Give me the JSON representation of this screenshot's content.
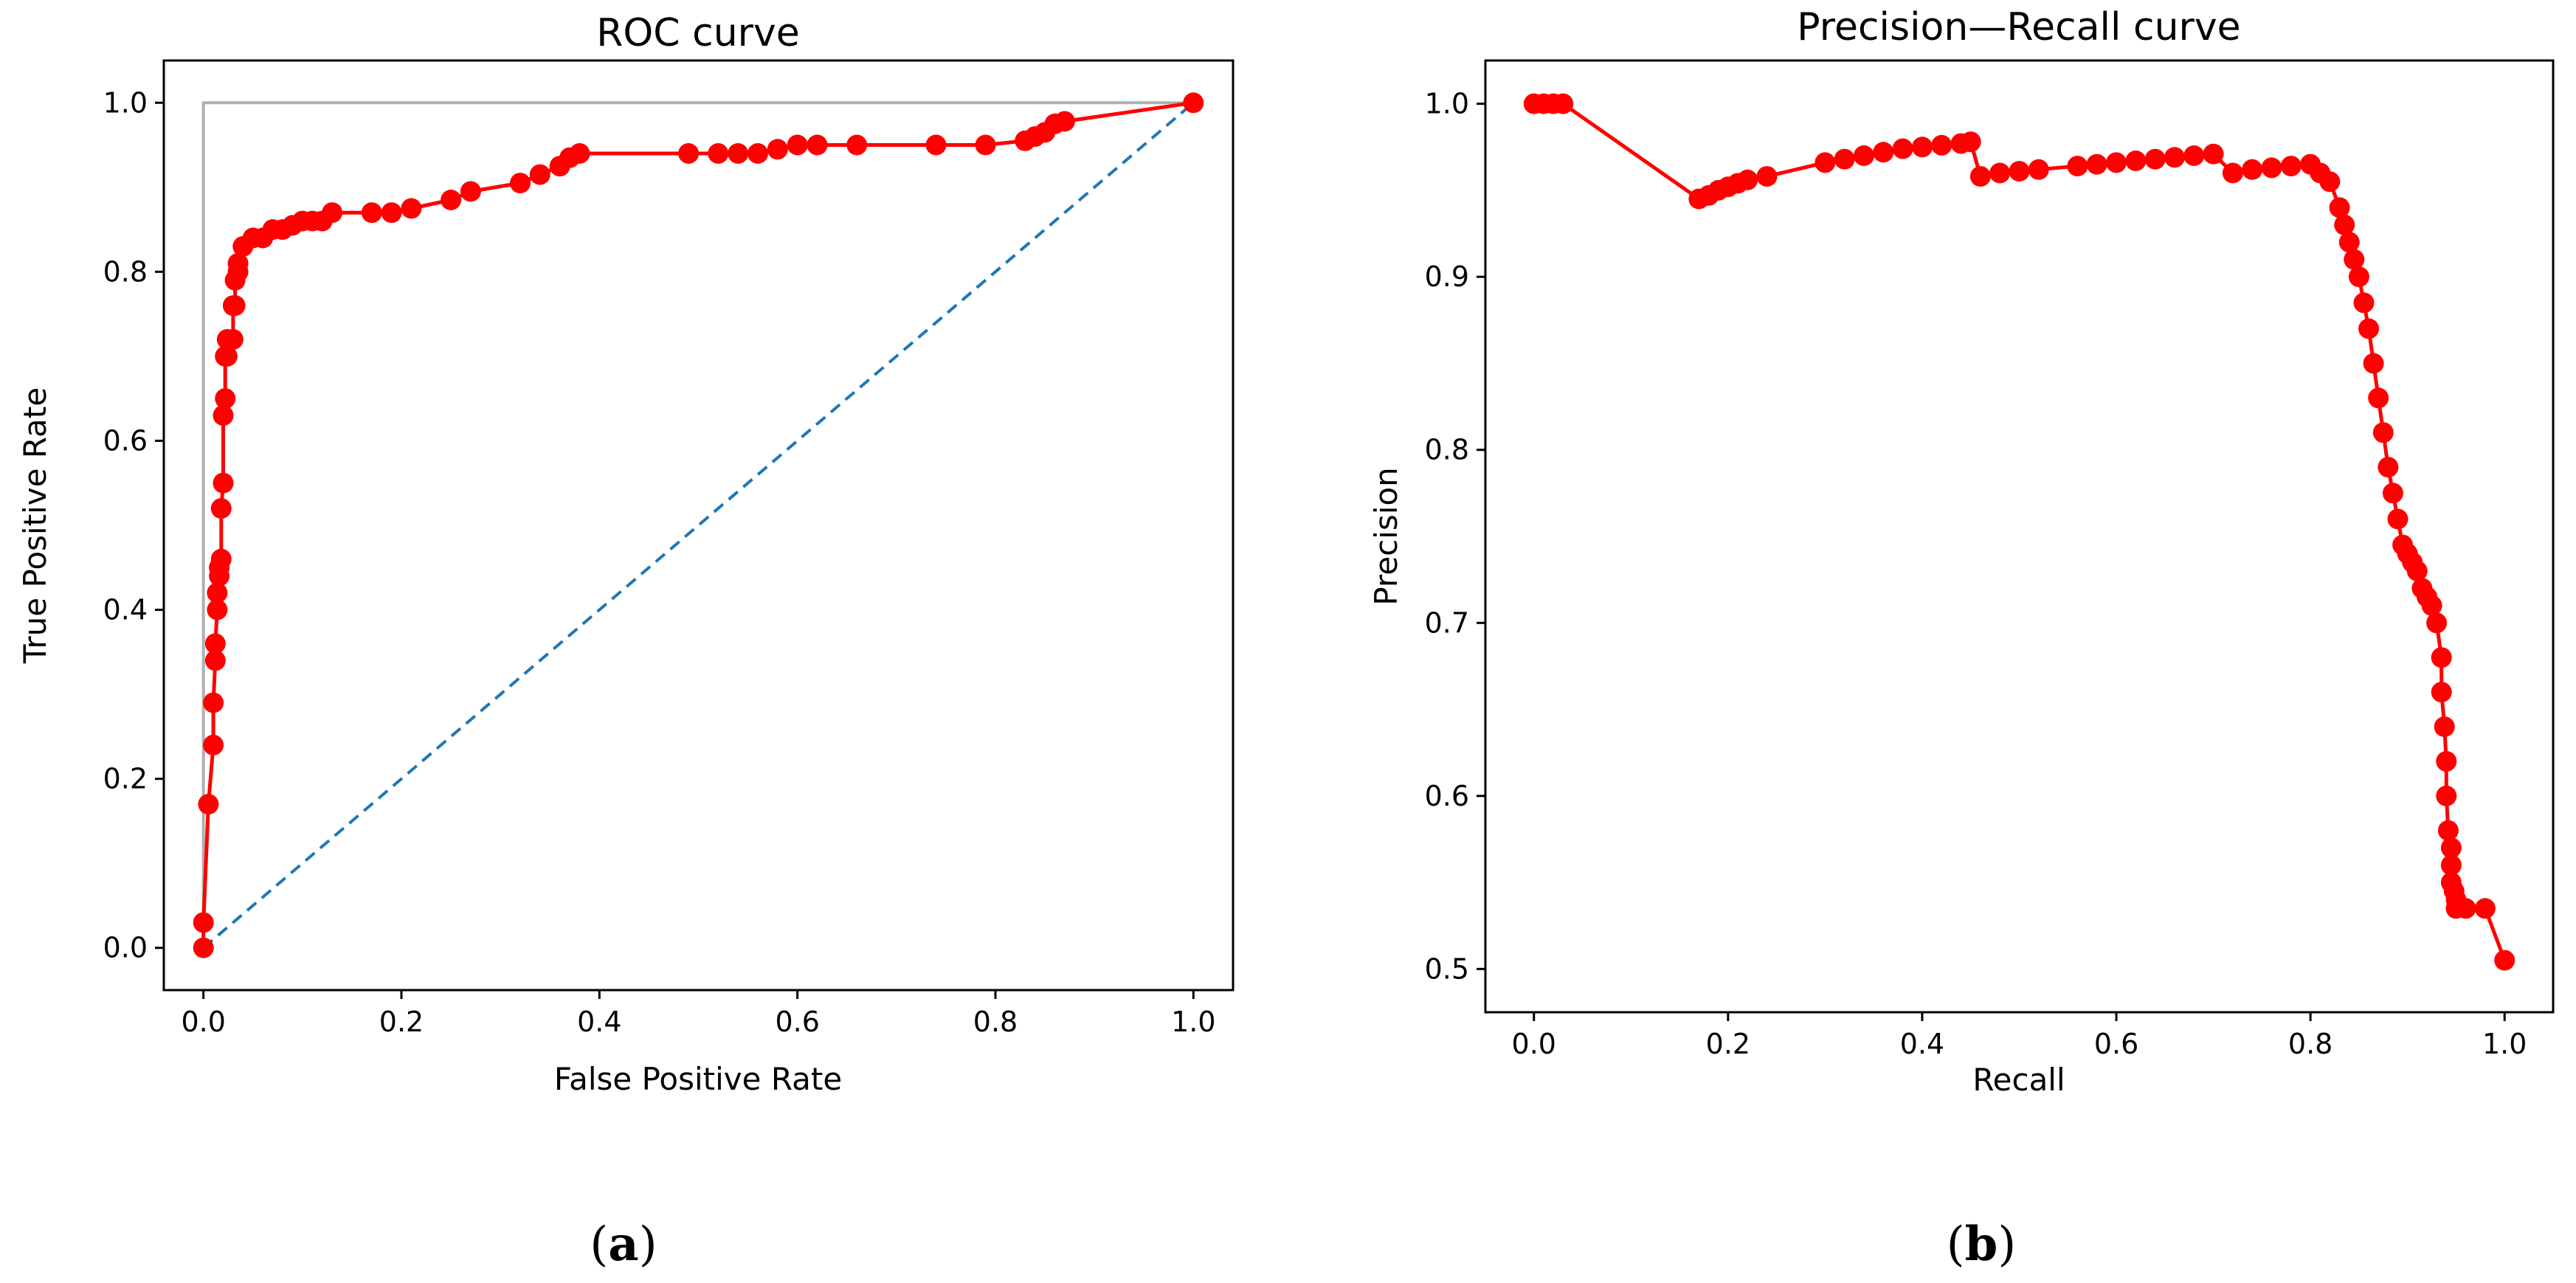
{
  "colors": {
    "curve": "#ff0000",
    "perfect": "#b0b0b0",
    "chance": "#1f77b4",
    "axis": "#000000"
  },
  "panels": {
    "a": {
      "open": "(",
      "letter": "a",
      "close": ")"
    },
    "b": {
      "open": "(",
      "letter": "b",
      "close": ")"
    }
  },
  "chart_data": [
    {
      "id": "roc",
      "type": "line",
      "title": "ROC curve",
      "xlabel": "False Positive Rate",
      "ylabel": "True Positive Rate",
      "xlim": [
        -0.04,
        1.04
      ],
      "ylim": [
        -0.05,
        1.05
      ],
      "xticks": [
        0.0,
        0.2,
        0.4,
        0.6,
        0.8,
        1.0
      ],
      "yticks": [
        0.0,
        0.2,
        0.4,
        0.6,
        0.8,
        1.0
      ],
      "tick_labels_x": [
        "0.0",
        "0.2",
        "0.4",
        "0.6",
        "0.8",
        "1.0"
      ],
      "tick_labels_y": [
        "0.0",
        "0.2",
        "0.4",
        "0.6",
        "0.8",
        "1.0"
      ],
      "series": [
        {
          "name": "perfect classifier",
          "style": "solid",
          "color": "#b0b0b0",
          "markers": false,
          "x": [
            0,
            0,
            1
          ],
          "y": [
            0,
            1,
            1
          ]
        },
        {
          "name": "chance",
          "style": "dashed",
          "color": "#1f77b4",
          "markers": false,
          "x": [
            0,
            1
          ],
          "y": [
            0,
            1
          ]
        },
        {
          "name": "ROC",
          "style": "solid",
          "color": "#ff0000",
          "markers": true,
          "x": [
            0,
            0,
            0.005,
            0.01,
            0.01,
            0.012,
            0.012,
            0.014,
            0.014,
            0.016,
            0.016,
            0.018,
            0.018,
            0.02,
            0.02,
            0.022,
            0.022,
            0.024,
            0.024,
            0.03,
            0.03,
            0.032,
            0.032,
            0.035,
            0.035,
            0.04,
            0.05,
            0.06,
            0.07,
            0.08,
            0.09,
            0.1,
            0.11,
            0.12,
            0.13,
            0.17,
            0.19,
            0.21,
            0.25,
            0.27,
            0.32,
            0.34,
            0.36,
            0.37,
            0.38,
            0.49,
            0.52,
            0.54,
            0.56,
            0.58,
            0.6,
            0.62,
            0.66,
            0.74,
            0.79,
            0.83,
            0.84,
            0.85,
            0.86,
            0.87,
            1.0
          ],
          "y": [
            0,
            0.03,
            0.17,
            0.24,
            0.29,
            0.34,
            0.36,
            0.4,
            0.42,
            0.44,
            0.45,
            0.46,
            0.52,
            0.55,
            0.63,
            0.65,
            0.7,
            0.7,
            0.72,
            0.72,
            0.76,
            0.76,
            0.79,
            0.8,
            0.81,
            0.83,
            0.84,
            0.84,
            0.85,
            0.85,
            0.855,
            0.86,
            0.86,
            0.86,
            0.87,
            0.87,
            0.87,
            0.875,
            0.885,
            0.895,
            0.905,
            0.915,
            0.925,
            0.935,
            0.94,
            0.94,
            0.94,
            0.94,
            0.94,
            0.945,
            0.95,
            0.95,
            0.95,
            0.95,
            0.95,
            0.955,
            0.96,
            0.965,
            0.975,
            0.978,
            1.0
          ]
        }
      ]
    },
    {
      "id": "pr",
      "type": "line",
      "title": "Precision—Recall curve",
      "xlabel": "Recall",
      "ylabel": "Precision",
      "xlim": [
        -0.05,
        1.05
      ],
      "ylim": [
        0.475,
        1.025
      ],
      "xticks": [
        0.0,
        0.2,
        0.4,
        0.6,
        0.8,
        1.0
      ],
      "yticks": [
        0.5,
        0.6,
        0.7,
        0.8,
        0.9,
        1.0
      ],
      "tick_labels_x": [
        "0.0",
        "0.2",
        "0.4",
        "0.6",
        "0.8",
        "1.0"
      ],
      "tick_labels_y": [
        "0.5",
        "0.6",
        "0.7",
        "0.8",
        "0.9",
        "1.0"
      ],
      "series": [
        {
          "name": "Precision-Recall",
          "style": "solid",
          "color": "#ff0000",
          "markers": true,
          "x": [
            0.0,
            0.01,
            0.02,
            0.03,
            0.17,
            0.18,
            0.19,
            0.2,
            0.21,
            0.22,
            0.24,
            0.3,
            0.32,
            0.34,
            0.36,
            0.38,
            0.4,
            0.42,
            0.44,
            0.45,
            0.46,
            0.48,
            0.5,
            0.52,
            0.56,
            0.58,
            0.6,
            0.62,
            0.64,
            0.66,
            0.68,
            0.7,
            0.72,
            0.74,
            0.76,
            0.78,
            0.8,
            0.81,
            0.82,
            0.83,
            0.835,
            0.84,
            0.845,
            0.85,
            0.855,
            0.86,
            0.865,
            0.87,
            0.875,
            0.88,
            0.885,
            0.89,
            0.895,
            0.9,
            0.905,
            0.91,
            0.915,
            0.92,
            0.925,
            0.93,
            0.935,
            0.935,
            0.938,
            0.94,
            0.94,
            0.942,
            0.945,
            0.945,
            0.945,
            0.948,
            0.95,
            0.95,
            0.96,
            0.98,
            1.0
          ],
          "y": [
            1.0,
            1.0,
            1.0,
            1.0,
            0.945,
            0.947,
            0.95,
            0.952,
            0.954,
            0.956,
            0.958,
            0.966,
            0.968,
            0.97,
            0.972,
            0.974,
            0.975,
            0.976,
            0.977,
            0.978,
            0.958,
            0.96,
            0.961,
            0.962,
            0.964,
            0.965,
            0.966,
            0.967,
            0.968,
            0.969,
            0.97,
            0.971,
            0.96,
            0.962,
            0.963,
            0.964,
            0.965,
            0.96,
            0.955,
            0.94,
            0.93,
            0.92,
            0.91,
            0.9,
            0.885,
            0.87,
            0.85,
            0.83,
            0.81,
            0.79,
            0.775,
            0.76,
            0.745,
            0.74,
            0.735,
            0.73,
            0.72,
            0.715,
            0.71,
            0.7,
            0.68,
            0.66,
            0.64,
            0.62,
            0.6,
            0.58,
            0.57,
            0.56,
            0.55,
            0.545,
            0.54,
            0.535,
            0.535,
            0.535,
            0.505
          ]
        }
      ]
    }
  ]
}
